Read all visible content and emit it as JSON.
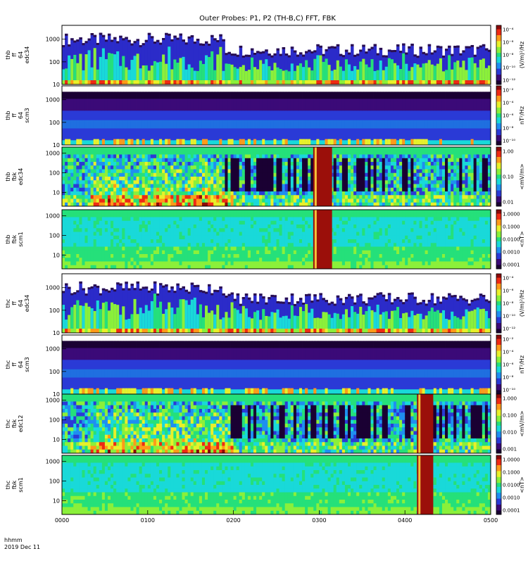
{
  "chart_data": {
    "type": "heatmap",
    "title": "Outer Probes: P1, P2 (TH-B,C) FFT, FBK",
    "x_ticks": [
      "0000",
      "0100",
      "0200",
      "0300",
      "0400",
      "0500"
    ],
    "x_range_hours": [
      0,
      5
    ],
    "x_footer": [
      "hhmm",
      "2019 Dec 11"
    ],
    "panels": [
      {
        "id": "thb-ffp-e",
        "probe": "thb",
        "ylabel": [
          "thb",
          "ff",
          "64",
          "edc34"
        ],
        "y_ticks": [
          "1000",
          "100",
          "10"
        ],
        "y_tick_values": [
          1000,
          100,
          10
        ],
        "ylim": [
          10,
          4096
        ],
        "colorbar_label": "(V/m)²/Hz",
        "colorbar_ticks": [
          "10⁻⁴",
          "10⁻⁶",
          "10⁻⁸",
          "10⁻¹⁰",
          "10⁻¹²"
        ],
        "style": "fft-electric",
        "events": []
      },
      {
        "id": "thb-ffp-b",
        "probe": "thb",
        "ylabel": [
          "thb",
          "ff",
          "64",
          "scm3"
        ],
        "y_ticks": [
          "1000",
          "100",
          "10"
        ],
        "y_tick_values": [
          1000,
          100,
          10
        ],
        "ylim": [
          10,
          4096
        ],
        "colorbar_label": "nT²/Hz",
        "colorbar_ticks": [
          "10⁻²",
          "10⁻⁴",
          "10⁻⁶",
          "10⁻⁸",
          "10⁻¹⁰"
        ],
        "style": "fft-magnetic",
        "events": []
      },
      {
        "id": "thb-fbk-e",
        "probe": "thb",
        "ylabel": [
          "thb",
          "fbk",
          "edc34"
        ],
        "y_ticks": [
          "1000",
          "100",
          "10"
        ],
        "y_tick_values": [
          1000,
          100,
          10
        ],
        "ylim": [
          2,
          2048
        ],
        "colorbar_label": "<mV/m>",
        "colorbar_ticks": [
          "1.00",
          "0.10",
          "0.01"
        ],
        "style": "fbk-electric",
        "events": [
          {
            "start_hours": 2.93,
            "end_hours": 3.15
          }
        ]
      },
      {
        "id": "thb-fbk-b",
        "probe": "thb",
        "ylabel": [
          "thb",
          "fbk",
          "scm1"
        ],
        "y_ticks": [
          "1000",
          "100",
          "10"
        ],
        "y_tick_values": [
          1000,
          100,
          10
        ],
        "ylim": [
          2,
          2048
        ],
        "colorbar_label": "<nT>",
        "colorbar_ticks": [
          "1.0000",
          "0.1000",
          "0.0100",
          "0.0010",
          "0.0001"
        ],
        "style": "fbk-magnetic",
        "events": [
          {
            "start_hours": 2.93,
            "end_hours": 3.15
          }
        ]
      },
      {
        "id": "thc-ffp-e",
        "probe": "thc",
        "ylabel": [
          "thc",
          "ff",
          "64",
          "edc34"
        ],
        "y_ticks": [
          "1000",
          "100",
          "10"
        ],
        "y_tick_values": [
          1000,
          100,
          10
        ],
        "ylim": [
          10,
          4096
        ],
        "colorbar_label": "(V/m)²/Hz",
        "colorbar_ticks": [
          "10⁻⁴",
          "10⁻⁶",
          "10⁻⁸",
          "10⁻¹⁰",
          "10⁻¹²"
        ],
        "style": "fft-electric",
        "events": []
      },
      {
        "id": "thc-ffp-b",
        "probe": "thc",
        "ylabel": [
          "thc",
          "ff",
          "64",
          "scm3"
        ],
        "y_ticks": [
          "1000",
          "100",
          "10"
        ],
        "y_tick_values": [
          1000,
          100,
          10
        ],
        "ylim": [
          10,
          4096
        ],
        "colorbar_label": "nT²/Hz",
        "colorbar_ticks": [
          "10⁻²",
          "10⁻⁴",
          "10⁻⁶",
          "10⁻⁸",
          "10⁻¹⁰"
        ],
        "style": "fft-magnetic",
        "events": []
      },
      {
        "id": "thc-fbk-e",
        "probe": "thc",
        "ylabel": [
          "thc",
          "fbk",
          "edc12"
        ],
        "y_ticks": [
          "1000",
          "100",
          "10"
        ],
        "y_tick_values": [
          1000,
          100,
          10
        ],
        "ylim": [
          2,
          2048
        ],
        "colorbar_label": "<mV/m>",
        "colorbar_ticks": [
          "1.000",
          "0.100",
          "0.010",
          "0.001"
        ],
        "style": "fbk-electric",
        "events": [
          {
            "start_hours": 4.14,
            "end_hours": 4.33
          }
        ]
      },
      {
        "id": "thc-fbk-b",
        "probe": "thc",
        "ylabel": [
          "thc",
          "fbk",
          "scm1"
        ],
        "y_ticks": [
          "1000",
          "100",
          "10"
        ],
        "y_tick_values": [
          1000,
          100,
          10
        ],
        "ylim": [
          2,
          2048
        ],
        "colorbar_label": "<nT>",
        "colorbar_ticks": [
          "1.0000",
          "0.1000",
          "0.0100",
          "0.0010",
          "0.0001"
        ],
        "style": "fbk-magnetic",
        "events": [
          {
            "start_hours": 4.14,
            "end_hours": 4.33
          }
        ]
      }
    ]
  }
}
